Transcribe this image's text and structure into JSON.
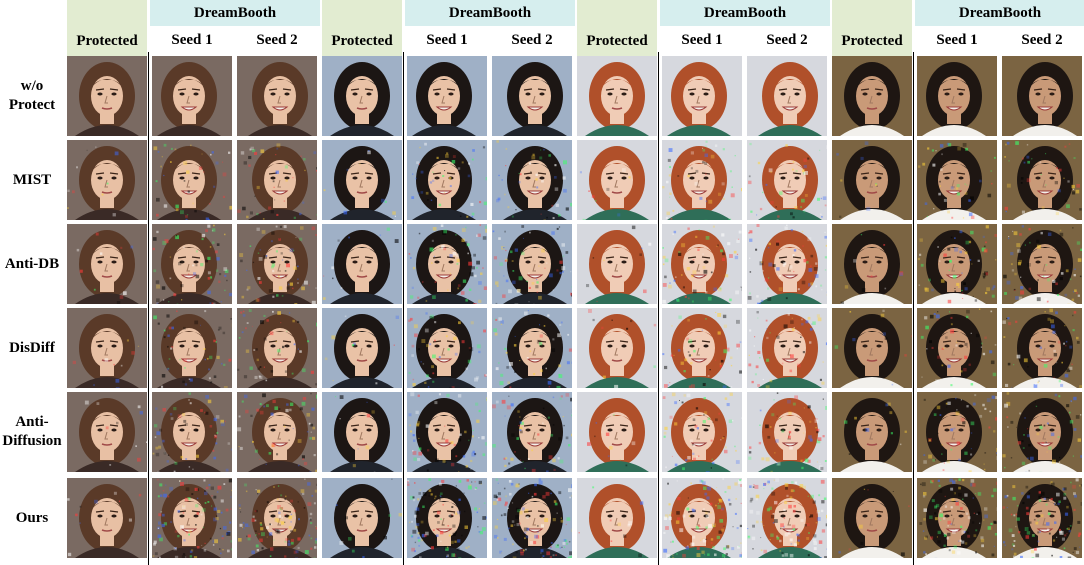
{
  "headers": {
    "protected": "Protected",
    "dreambooth": "DreamBooth",
    "seed1": "Seed 1",
    "seed2": "Seed 2"
  },
  "rows": [
    {
      "label": "w/o\nProtect"
    },
    {
      "label": "MIST"
    },
    {
      "label": "Anti-DB"
    },
    {
      "label": "DisDiff"
    },
    {
      "label": "Anti-\nDiffusion"
    },
    {
      "label": "Ours"
    }
  ],
  "subjects": [
    {
      "name": "subject-1",
      "bg": "#7a6a62",
      "skin": "#e8c0a4",
      "hair": "#5a3a28",
      "shirt": "#3a2a26"
    },
    {
      "name": "subject-2",
      "bg": "#9fb0c6",
      "skin": "#e9c2a6",
      "hair": "#1c1614",
      "shirt": "#20242c"
    },
    {
      "name": "subject-3",
      "bg": "#d6d8de",
      "skin": "#f0ccb6",
      "hair": "#b0502a",
      "shirt": "#2f6e58"
    },
    {
      "name": "subject-4",
      "bg": "#7b6442",
      "skin": "#c99a78",
      "hair": "#1e1612",
      "shirt": "#f2f0ec"
    }
  ],
  "colors": {
    "protected_header": "#e2ecd1",
    "dreambooth_header": "#d6eeee",
    "separator": "#000000"
  }
}
